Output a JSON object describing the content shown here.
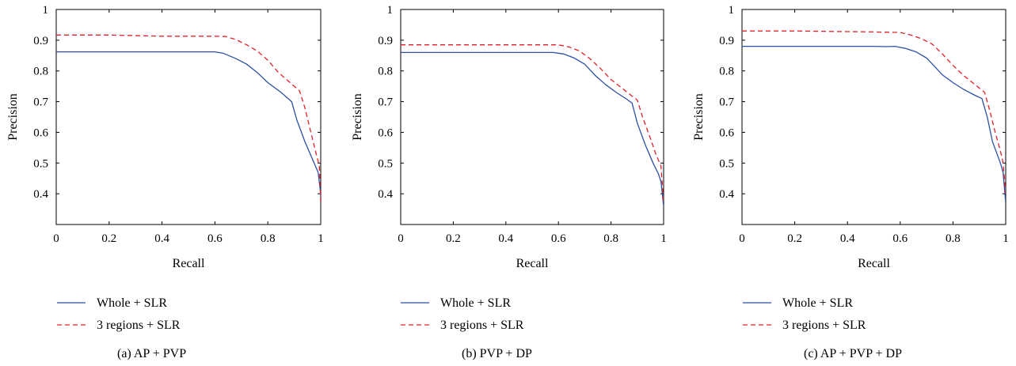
{
  "colors": {
    "whole": "#2b4fa5",
    "regions": "#e3202a",
    "axes": "#000000",
    "background": "#ffffff"
  },
  "chart_data": [
    {
      "type": "line",
      "caption": "(a)  AP + PVP",
      "xlabel": "Recall",
      "ylabel": "Precision",
      "xlim": [
        0,
        1
      ],
      "ylim": [
        0.3,
        1
      ],
      "xticks": [
        "0",
        "0.2",
        "0.4",
        "0.6",
        "0.8",
        "1"
      ],
      "yticks": [
        "0.4",
        "0.5",
        "0.6",
        "0.7",
        "0.8",
        "0.9",
        "1"
      ],
      "grid": false,
      "legend_position": "below",
      "series": [
        {
          "name": "Whole + SLR",
          "style": "solid",
          "color": "#2b4fa5",
          "points": [
            [
              0,
              0.862
            ],
            [
              0.2,
              0.862
            ],
            [
              0.4,
              0.862
            ],
            [
              0.6,
              0.862
            ],
            [
              0.63,
              0.858
            ],
            [
              0.68,
              0.84
            ],
            [
              0.72,
              0.822
            ],
            [
              0.76,
              0.795
            ],
            [
              0.8,
              0.762
            ],
            [
              0.85,
              0.73
            ],
            [
              0.89,
              0.7
            ],
            [
              0.91,
              0.64
            ],
            [
              0.94,
              0.57
            ],
            [
              0.97,
              0.51
            ],
            [
              0.99,
              0.47
            ],
            [
              1.0,
              0.4
            ]
          ]
        },
        {
          "name": "3 regions + SLR",
          "style": "dashed",
          "color": "#e3202a",
          "points": [
            [
              0,
              0.917
            ],
            [
              0.2,
              0.917
            ],
            [
              0.4,
              0.913
            ],
            [
              0.6,
              0.913
            ],
            [
              0.64,
              0.912
            ],
            [
              0.68,
              0.902
            ],
            [
              0.72,
              0.885
            ],
            [
              0.76,
              0.865
            ],
            [
              0.8,
              0.835
            ],
            [
              0.84,
              0.795
            ],
            [
              0.88,
              0.765
            ],
            [
              0.92,
              0.735
            ],
            [
              0.94,
              0.68
            ],
            [
              0.96,
              0.61
            ],
            [
              0.98,
              0.54
            ],
            [
              0.995,
              0.49
            ],
            [
              1.0,
              0.37
            ]
          ]
        }
      ]
    },
    {
      "type": "line",
      "caption": "(b)  PVP + DP",
      "xlabel": "Recall",
      "ylabel": "Precision",
      "xlim": [
        0,
        1
      ],
      "ylim": [
        0.3,
        1
      ],
      "xticks": [
        "0",
        "0.2",
        "0.4",
        "0.6",
        "0.8",
        "1"
      ],
      "yticks": [
        "0.4",
        "0.5",
        "0.6",
        "0.7",
        "0.8",
        "0.9",
        "1"
      ],
      "grid": false,
      "legend_position": "below",
      "series": [
        {
          "name": "Whole + SLR",
          "style": "solid",
          "color": "#2b4fa5",
          "points": [
            [
              0,
              0.86
            ],
            [
              0.2,
              0.86
            ],
            [
              0.4,
              0.86
            ],
            [
              0.58,
              0.86
            ],
            [
              0.62,
              0.855
            ],
            [
              0.66,
              0.842
            ],
            [
              0.7,
              0.822
            ],
            [
              0.74,
              0.785
            ],
            [
              0.78,
              0.755
            ],
            [
              0.82,
              0.73
            ],
            [
              0.86,
              0.708
            ],
            [
              0.88,
              0.695
            ],
            [
              0.9,
              0.63
            ],
            [
              0.93,
              0.56
            ],
            [
              0.96,
              0.5
            ],
            [
              0.98,
              0.465
            ],
            [
              0.99,
              0.44
            ],
            [
              1.0,
              0.36
            ]
          ]
        },
        {
          "name": "3 regions + SLR",
          "style": "dashed",
          "color": "#e3202a",
          "points": [
            [
              0,
              0.885
            ],
            [
              0.2,
              0.885
            ],
            [
              0.4,
              0.885
            ],
            [
              0.6,
              0.885
            ],
            [
              0.64,
              0.878
            ],
            [
              0.68,
              0.865
            ],
            [
              0.72,
              0.84
            ],
            [
              0.76,
              0.808
            ],
            [
              0.8,
              0.772
            ],
            [
              0.84,
              0.745
            ],
            [
              0.88,
              0.718
            ],
            [
              0.9,
              0.705
            ],
            [
              0.92,
              0.65
            ],
            [
              0.95,
              0.58
            ],
            [
              0.97,
              0.53
            ],
            [
              0.99,
              0.49
            ],
            [
              1.0,
              0.37
            ]
          ]
        }
      ]
    },
    {
      "type": "line",
      "caption": "(c)  AP + PVP + DP",
      "xlabel": "Recall",
      "ylabel": "Precision",
      "xlim": [
        0,
        1
      ],
      "ylim": [
        0.3,
        1
      ],
      "xticks": [
        "0",
        "0.2",
        "0.4",
        "0.6",
        "0.8",
        "1"
      ],
      "yticks": [
        "0.4",
        "0.5",
        "0.6",
        "0.7",
        "0.8",
        "0.9",
        "1"
      ],
      "grid": false,
      "legend_position": "below",
      "series": [
        {
          "name": "Whole + SLR",
          "style": "solid",
          "color": "#2b4fa5",
          "points": [
            [
              0,
              0.88
            ],
            [
              0.2,
              0.88
            ],
            [
              0.4,
              0.88
            ],
            [
              0.5,
              0.88
            ],
            [
              0.55,
              0.879
            ],
            [
              0.58,
              0.88
            ],
            [
              0.62,
              0.873
            ],
            [
              0.66,
              0.862
            ],
            [
              0.7,
              0.842
            ],
            [
              0.73,
              0.815
            ],
            [
              0.76,
              0.787
            ],
            [
              0.8,
              0.762
            ],
            [
              0.84,
              0.74
            ],
            [
              0.88,
              0.722
            ],
            [
              0.91,
              0.71
            ],
            [
              0.93,
              0.65
            ],
            [
              0.95,
              0.57
            ],
            [
              0.98,
              0.5
            ],
            [
              0.99,
              0.47
            ],
            [
              1.0,
              0.37
            ]
          ]
        },
        {
          "name": "3 regions + SLR",
          "style": "dashed",
          "color": "#e3202a",
          "points": [
            [
              0,
              0.93
            ],
            [
              0.2,
              0.93
            ],
            [
              0.4,
              0.928
            ],
            [
              0.5,
              0.927
            ],
            [
              0.6,
              0.925
            ],
            [
              0.64,
              0.917
            ],
            [
              0.68,
              0.905
            ],
            [
              0.72,
              0.888
            ],
            [
              0.76,
              0.855
            ],
            [
              0.8,
              0.818
            ],
            [
              0.84,
              0.785
            ],
            [
              0.88,
              0.758
            ],
            [
              0.92,
              0.73
            ],
            [
              0.94,
              0.67
            ],
            [
              0.96,
              0.6
            ],
            [
              0.98,
              0.54
            ],
            [
              0.99,
              0.5
            ],
            [
              1.0,
              0.4
            ]
          ]
        }
      ]
    }
  ]
}
